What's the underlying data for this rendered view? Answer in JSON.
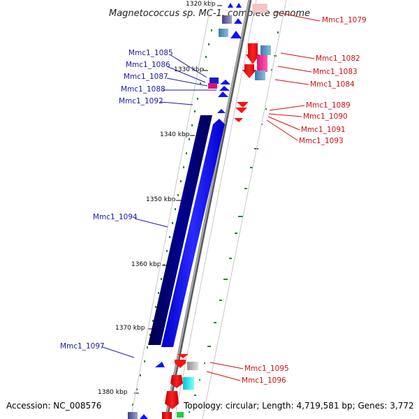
{
  "title": "Magnetococcus sp. MC-1, complete genome",
  "footer": {
    "accession": "Accession: NC_008576",
    "summary": "Topology: circular; Length: 4,719,581 bp; Genes: 3,772"
  },
  "ruler_ticks": [
    "1320 kbp",
    "1330 kbp",
    "1340 kbp",
    "1350 kbp",
    "1360 kbp",
    "1370 kbp",
    "1380 kbp"
  ],
  "gene_labels_left": [
    "Mmc1_1085",
    "Mmc1_1086",
    "Mmc1_1087",
    "Mmc1_1088",
    "Mmc1_1092",
    "Mmc1_1094",
    "Mmc1_1097"
  ],
  "gene_labels_right": [
    "Mmc1_1079",
    "Mmc1_1082",
    "Mmc1_1083",
    "Mmc1_1084",
    "Mmc1_1089",
    "Mmc1_1090",
    "Mmc1_1091",
    "Mmc1_1093",
    "Mmc1_1095",
    "Mmc1_1096"
  ],
  "colors": {
    "forward_strand": "#1010ff",
    "reverse_strand": "#ff1010",
    "backbone": "#888888",
    "left_label": "#1a1aa8",
    "right_label": "#d01010",
    "gc_marks": "#1e8a1e"
  }
}
